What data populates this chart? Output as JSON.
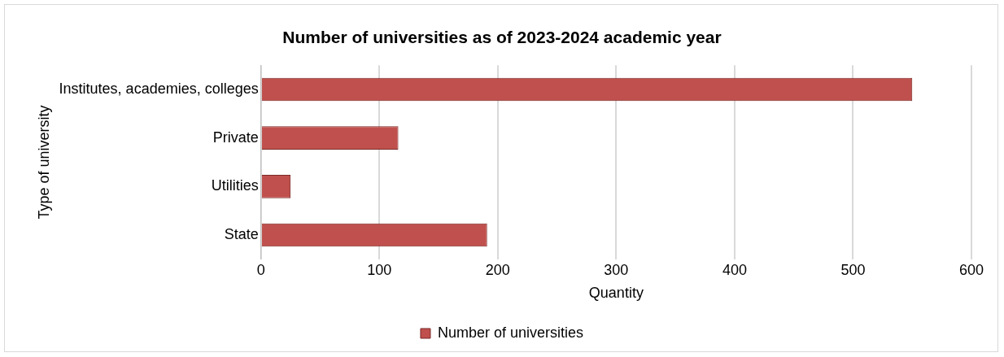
{
  "chart_data": {
    "type": "bar",
    "orientation": "horizontal",
    "title": "Number of universities as of 2023-2024 academic year",
    "xlabel": "Quantity",
    "ylabel": "Type of university",
    "categories": [
      "Institutes, academies, colleges",
      "Private",
      "Utilities",
      "State"
    ],
    "series": [
      {
        "name": "Number of universities",
        "color": "#c0504d",
        "values": [
          550,
          116,
          25,
          191
        ]
      }
    ],
    "xlim": [
      0,
      600
    ],
    "xticks": [
      0,
      100,
      200,
      300,
      400,
      500,
      600
    ],
    "grid": "x",
    "legend": "bottom"
  }
}
